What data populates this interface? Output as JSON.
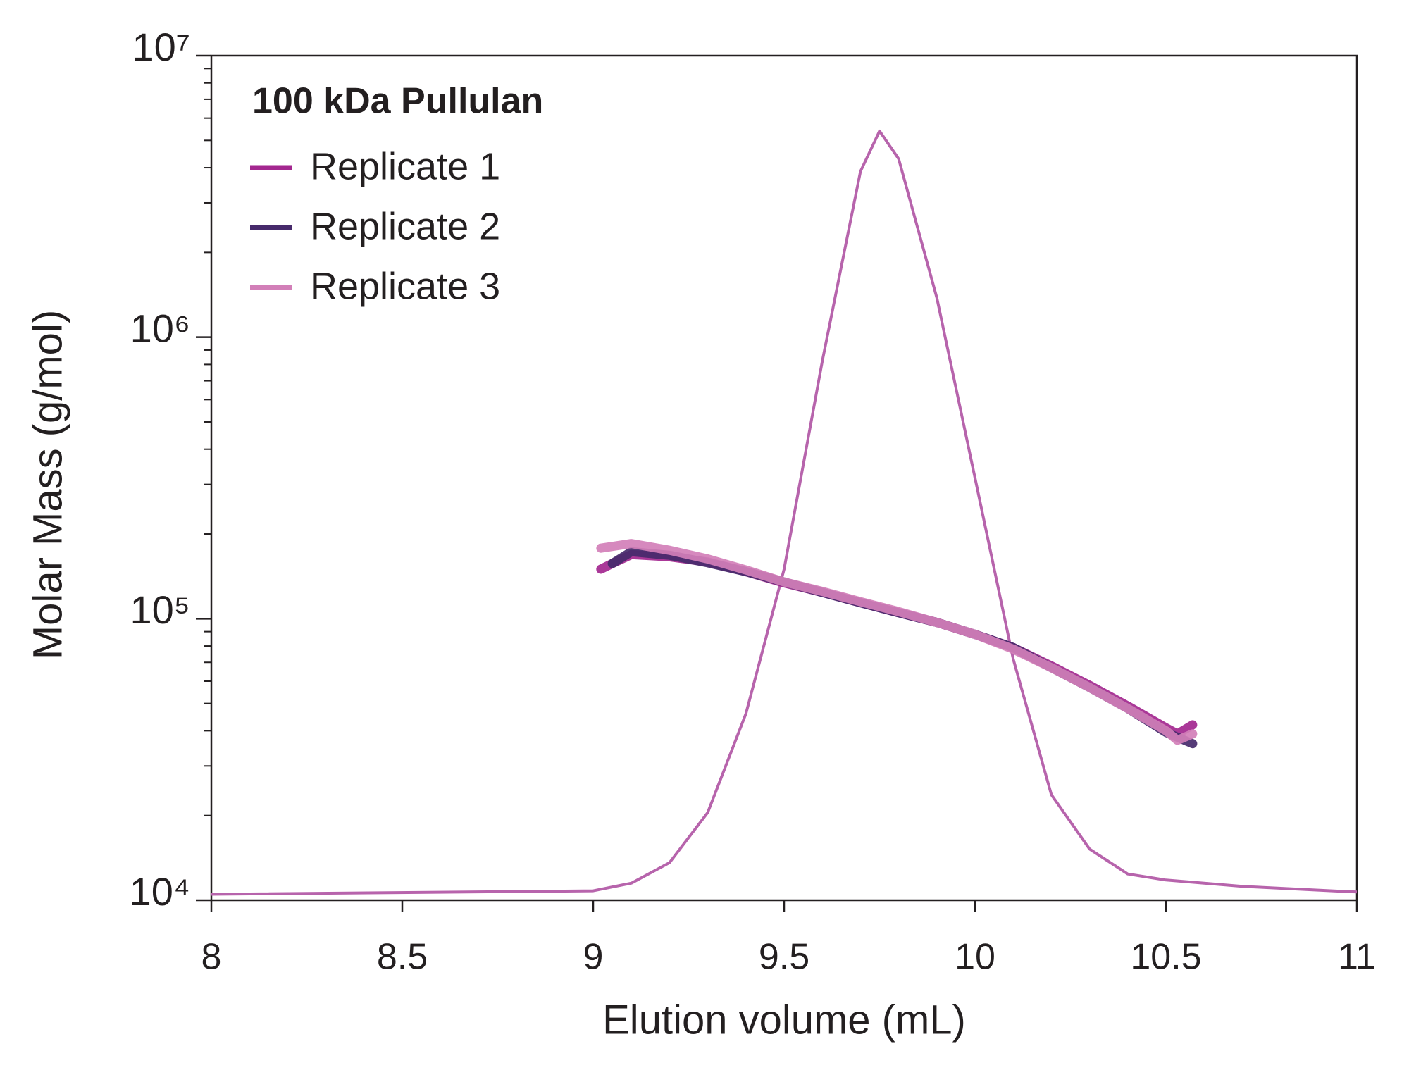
{
  "chart_data": {
    "type": "line",
    "xlabel": "Elution volume (mL)",
    "ylabel": "Molar Mass (g/mol)",
    "legend_title": "100 kDa Pullulan",
    "legend": "upper left",
    "yscale": "log",
    "xlim": [
      8,
      11
    ],
    "ylim": [
      10000,
      10000000
    ],
    "xticks": [
      8,
      8.5,
      9,
      9.5,
      10,
      10.5,
      11
    ],
    "yticks": [
      {
        "value": 10000,
        "label": "10⁴"
      },
      {
        "value": 100000,
        "label": "10⁵"
      },
      {
        "value": 1000000,
        "label": "10⁶"
      },
      {
        "value": 10000000,
        "label": "10⁷"
      }
    ],
    "yminorticks": [
      20000,
      30000,
      40000,
      50000,
      60000,
      70000,
      80000,
      90000,
      200000,
      300000,
      400000,
      500000,
      600000,
      700000,
      800000,
      900000,
      2000000,
      3000000,
      4000000,
      5000000,
      6000000,
      7000000,
      8000000,
      9000000
    ],
    "series": [
      {
        "name": "Replicate 1",
        "color": "#a3278f",
        "x": [
          9.02,
          9.05,
          9.1,
          9.2,
          9.3,
          9.4,
          9.5,
          9.6,
          9.7,
          9.8,
          9.9,
          10.0,
          10.1,
          10.2,
          10.3,
          10.4,
          10.5,
          10.53,
          10.57
        ],
        "values": [
          150000,
          157000,
          169000,
          166000,
          159000,
          147000,
          134000,
          124000,
          114000,
          105000,
          97000,
          88000,
          79000,
          68000,
          58000,
          49000,
          41000,
          39000,
          42000
        ]
      },
      {
        "name": "Replicate 2",
        "color": "#472a6b",
        "x": [
          9.05,
          9.1,
          9.2,
          9.3,
          9.4,
          9.5,
          9.6,
          9.7,
          9.8,
          9.9,
          10.0,
          10.1,
          10.2,
          10.3,
          10.4,
          10.5,
          10.57
        ],
        "values": [
          157000,
          173000,
          168000,
          158000,
          147000,
          135000,
          124000,
          114000,
          105000,
          97000,
          88000,
          79000,
          67000,
          57000,
          48000,
          39500,
          36000
        ]
      },
      {
        "name": "Replicate 3",
        "color": "#d27fb8",
        "x": [
          9.02,
          9.1,
          9.2,
          9.3,
          9.4,
          9.5,
          9.6,
          9.7,
          9.8,
          9.9,
          10.0,
          10.1,
          10.2,
          10.3,
          10.4,
          10.5,
          10.53,
          10.57
        ],
        "values": [
          178000,
          185000,
          175000,
          163000,
          149000,
          135000,
          125000,
          115000,
          106000,
          97000,
          88000,
          78000,
          67000,
          57000,
          48000,
          40000,
          37000,
          39000
        ]
      }
    ],
    "trace": {
      "color": "#b764ac",
      "x": [
        8,
        9.0,
        9.1,
        9.2,
        9.3,
        9.4,
        9.5,
        9.6,
        9.7,
        9.75,
        9.8,
        9.9,
        10.0,
        10.1,
        10.2,
        10.3,
        10.4,
        10.5,
        10.7,
        11
      ],
      "values": [
        10500,
        10800,
        11500,
        13600,
        20500,
        46000,
        150000,
        822000,
        3880000,
        5400000,
        4300000,
        1380000,
        316000,
        72000,
        23700,
        15200,
        12400,
        11800,
        11200,
        10700
      ]
    }
  }
}
